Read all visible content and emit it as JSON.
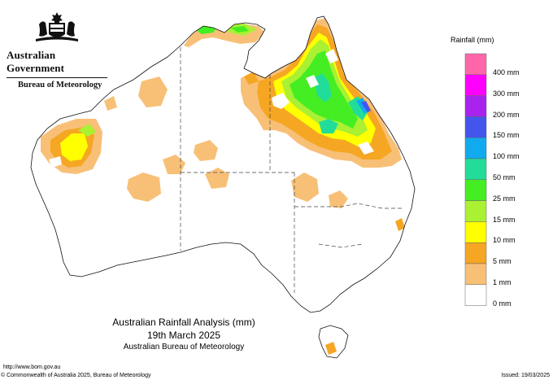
{
  "header": {
    "government": "Australian Government",
    "bureau": "Bureau of Meteorology"
  },
  "map": {
    "title": "Australian Rainfall Analysis (mm)",
    "date": "19th March 2025",
    "credit": "Australian Bureau of Meteorology"
  },
  "legend": {
    "title": "Rainfall (mm)",
    "classes": [
      {
        "label": "400 mm",
        "color": "#ff66aa"
      },
      {
        "label": "300 mm",
        "color": "#ff00ff"
      },
      {
        "label": "200 mm",
        "color": "#aa22ee"
      },
      {
        "label": "150 mm",
        "color": "#4455ee"
      },
      {
        "label": "100 mm",
        "color": "#11aaee"
      },
      {
        "label": "50 mm",
        "color": "#22dd99"
      },
      {
        "label": "25 mm",
        "color": "#44ee22"
      },
      {
        "label": "15 mm",
        "color": "#aaf033"
      },
      {
        "label": "10 mm",
        "color": "#ffff00"
      },
      {
        "label": "5 mm",
        "color": "#f5a623"
      },
      {
        "label": "1 mm",
        "color": "#f8c077"
      },
      {
        "label": "0 mm",
        "color": "#ffffff"
      }
    ]
  },
  "footer": {
    "url": "http://www.bom.gov.au",
    "copyright": "© Commonwealth of Australia 2025, Bureau of Meteorology",
    "issued": "Issued: 19/03/2025"
  }
}
